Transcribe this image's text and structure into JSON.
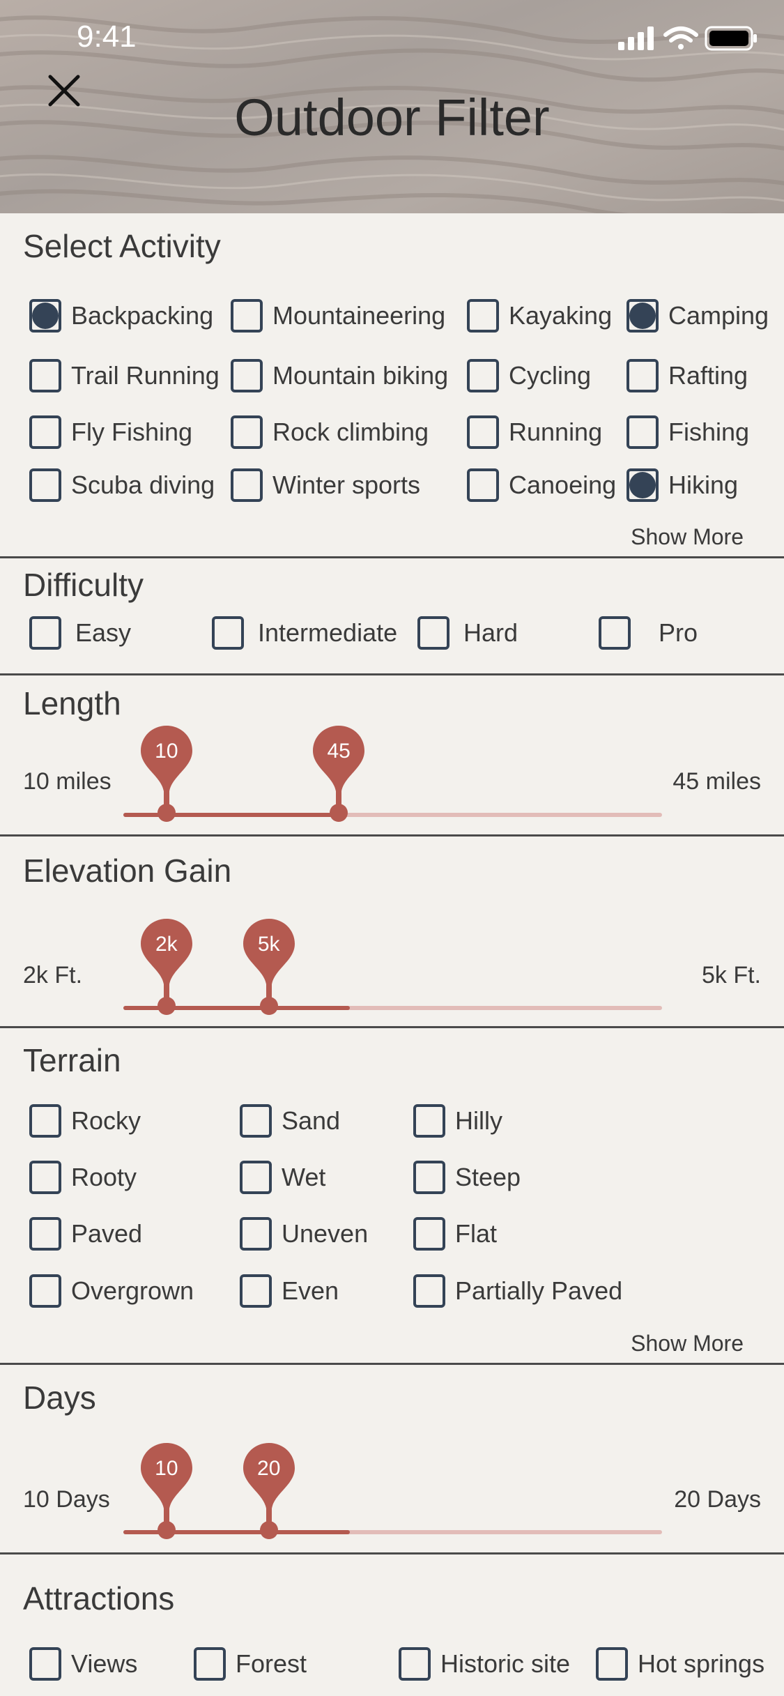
{
  "status": {
    "time": "9:41"
  },
  "header": {
    "title": "Outdoor Filter"
  },
  "activity": {
    "title": "Select Activity",
    "show_more": "Show More",
    "items": [
      {
        "label": "Backpacking",
        "checked": true
      },
      {
        "label": "Mountaineering",
        "checked": false
      },
      {
        "label": "Kayaking",
        "checked": false
      },
      {
        "label": "Camping",
        "checked": true
      },
      {
        "label": "Trail Running",
        "checked": false
      },
      {
        "label": "Mountain biking",
        "checked": false
      },
      {
        "label": "Cycling",
        "checked": false
      },
      {
        "label": "Rafting",
        "checked": false
      },
      {
        "label": "Fly Fishing",
        "checked": false
      },
      {
        "label": "Rock climbing",
        "checked": false
      },
      {
        "label": "Running",
        "checked": false
      },
      {
        "label": "Fishing",
        "checked": false
      },
      {
        "label": "Scuba diving",
        "checked": false
      },
      {
        "label": "Winter sports",
        "checked": false
      },
      {
        "label": "Canoeing",
        "checked": false
      },
      {
        "label": "Hiking",
        "checked": true
      }
    ]
  },
  "difficulty": {
    "title": "Difficulty",
    "items": [
      {
        "label": "Easy",
        "checked": false
      },
      {
        "label": "Intermediate",
        "checked": false
      },
      {
        "label": "Hard",
        "checked": false
      },
      {
        "label": "Pro",
        "checked": false
      }
    ]
  },
  "length": {
    "title": "Length",
    "min_label": "10 miles",
    "max_label": "45 miles",
    "low": "10",
    "high": "45",
    "low_fraction": 0.08,
    "high_fraction": 0.4
  },
  "elevation": {
    "title": "Elevation Gain",
    "min_label": "2k Ft.",
    "max_label": "5k Ft.",
    "low": "2k",
    "high": "5k",
    "low_fraction": 0.08,
    "high_fraction": 0.27,
    "fill_fraction": 0.42
  },
  "terrain": {
    "title": "Terrain",
    "show_more": "Show More",
    "items": [
      {
        "label": "Rocky",
        "checked": false
      },
      {
        "label": "Sand",
        "checked": false
      },
      {
        "label": "Hilly",
        "checked": false
      },
      {
        "label": "Rooty",
        "checked": false
      },
      {
        "label": "Wet",
        "checked": false
      },
      {
        "label": "Steep",
        "checked": false
      },
      {
        "label": "Paved",
        "checked": false
      },
      {
        "label": "Uneven",
        "checked": false
      },
      {
        "label": "Flat",
        "checked": false
      },
      {
        "label": "Overgrown",
        "checked": false
      },
      {
        "label": "Even",
        "checked": false
      },
      {
        "label": "Partially Paved",
        "checked": false
      }
    ]
  },
  "days": {
    "title": "Days",
    "min_label": "10 Days",
    "max_label": "20 Days",
    "low": "10",
    "high": "20",
    "low_fraction": 0.08,
    "high_fraction": 0.27,
    "fill_fraction": 0.42
  },
  "attractions": {
    "title": "Attractions",
    "items": [
      {
        "label": "Views",
        "checked": false
      },
      {
        "label": "Forest",
        "checked": false
      },
      {
        "label": "Historic site",
        "checked": false
      },
      {
        "label": "Hot springs",
        "checked": false
      }
    ]
  },
  "colors": {
    "accent": "#b45a50",
    "track": "#e2bcb8",
    "checkbox": "#344356",
    "background": "#f3f1ed"
  }
}
